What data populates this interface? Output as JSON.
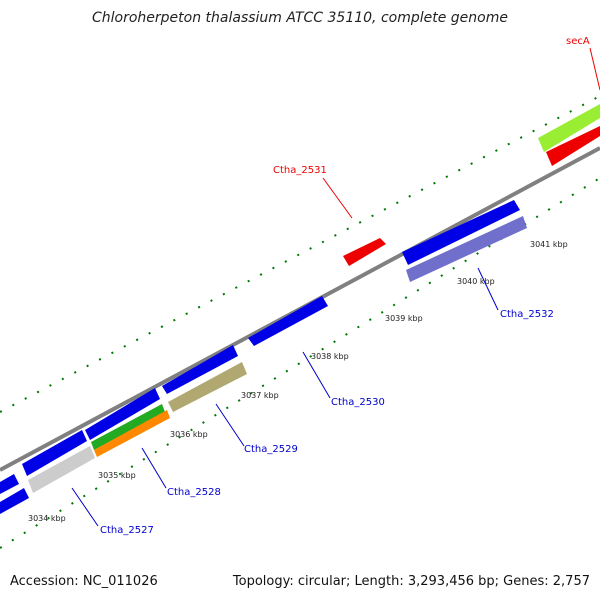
{
  "title": "Chloroherpeton thalassium ATCC 35110, complete genome",
  "footer": {
    "accession": "Accession: NC_011026",
    "summary": "Topology: circular; Length: 3,293,456 bp; Genes: 2,757"
  },
  "gene_labels": {
    "secA": "secA",
    "ctha_2531": "Ctha_2531",
    "ctha_2532": "Ctha_2532",
    "ctha_2530": "Ctha_2530",
    "ctha_2529": "Ctha_2529",
    "ctha_2528": "Ctha_2528",
    "ctha_2527": "Ctha_2527"
  },
  "ticks": [
    "3034 kbp",
    "3035 kbp",
    "3036 kbp",
    "3037 kbp",
    "3038 kbp",
    "3039 kbp",
    "3040 kbp",
    "3041 kbp"
  ],
  "colors": {
    "backbone": "#808080",
    "blue": "#0000e6",
    "lavender": "#7070cc",
    "red": "#ee0000",
    "lime": "#99ee33",
    "green": "#22aa22",
    "orange": "#ff8800",
    "olive": "#b0a870",
    "gray": "#cccccc",
    "dots": "#007700"
  }
}
